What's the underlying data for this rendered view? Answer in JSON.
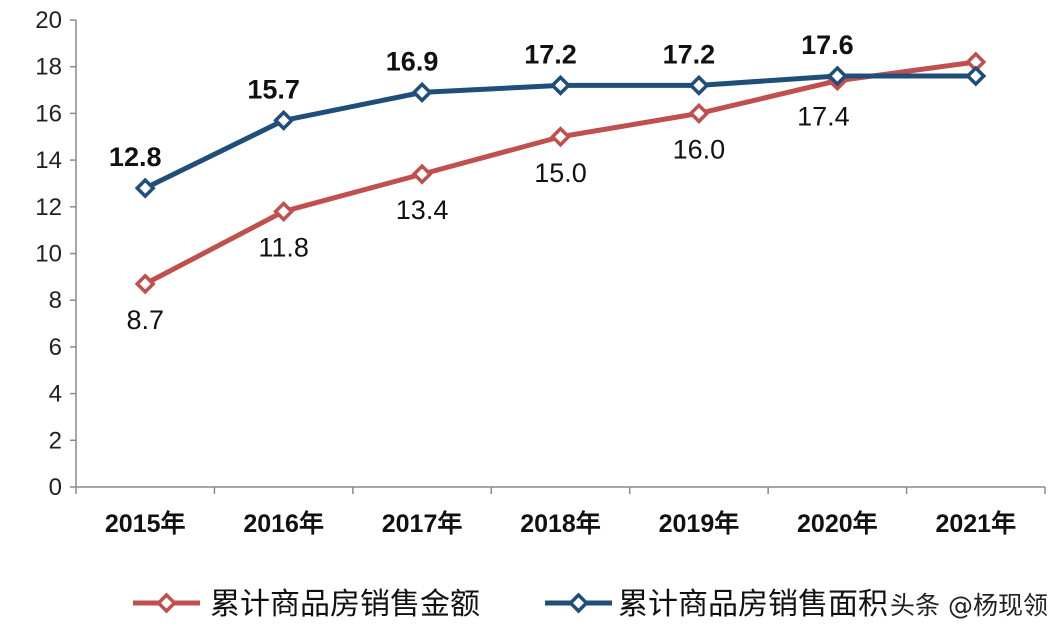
{
  "chart_data": {
    "type": "line",
    "categories": [
      "2015年",
      "2016年",
      "2017年",
      "2018年",
      "2019年",
      "2020年",
      "2021年"
    ],
    "ylim": [
      0,
      20
    ],
    "yticks": [
      "0",
      "2",
      "4",
      "6",
      "8",
      "10",
      "12",
      "14",
      "16",
      "18",
      "20"
    ],
    "series": [
      {
        "name": "累计商品房销售金额",
        "color": "#c0504d",
        "values": [
          8.7,
          11.8,
          13.4,
          15.0,
          16.0,
          17.4,
          18.2
        ],
        "labels": [
          "8.7",
          "11.8",
          "13.4",
          "15.0",
          "16.0",
          "17.4",
          ""
        ]
      },
      {
        "name": "累计商品房销售面积",
        "color": "#1f4e79",
        "values": [
          12.8,
          15.7,
          16.9,
          17.2,
          17.2,
          17.6,
          17.6
        ],
        "labels": [
          "12.8",
          "15.7",
          "16.9",
          "17.2",
          "17.2",
          "17.6",
          ""
        ]
      }
    ],
    "legend": "bottom",
    "xlabel": "",
    "ylabel": ""
  },
  "watermark": "头条 @杨现领"
}
